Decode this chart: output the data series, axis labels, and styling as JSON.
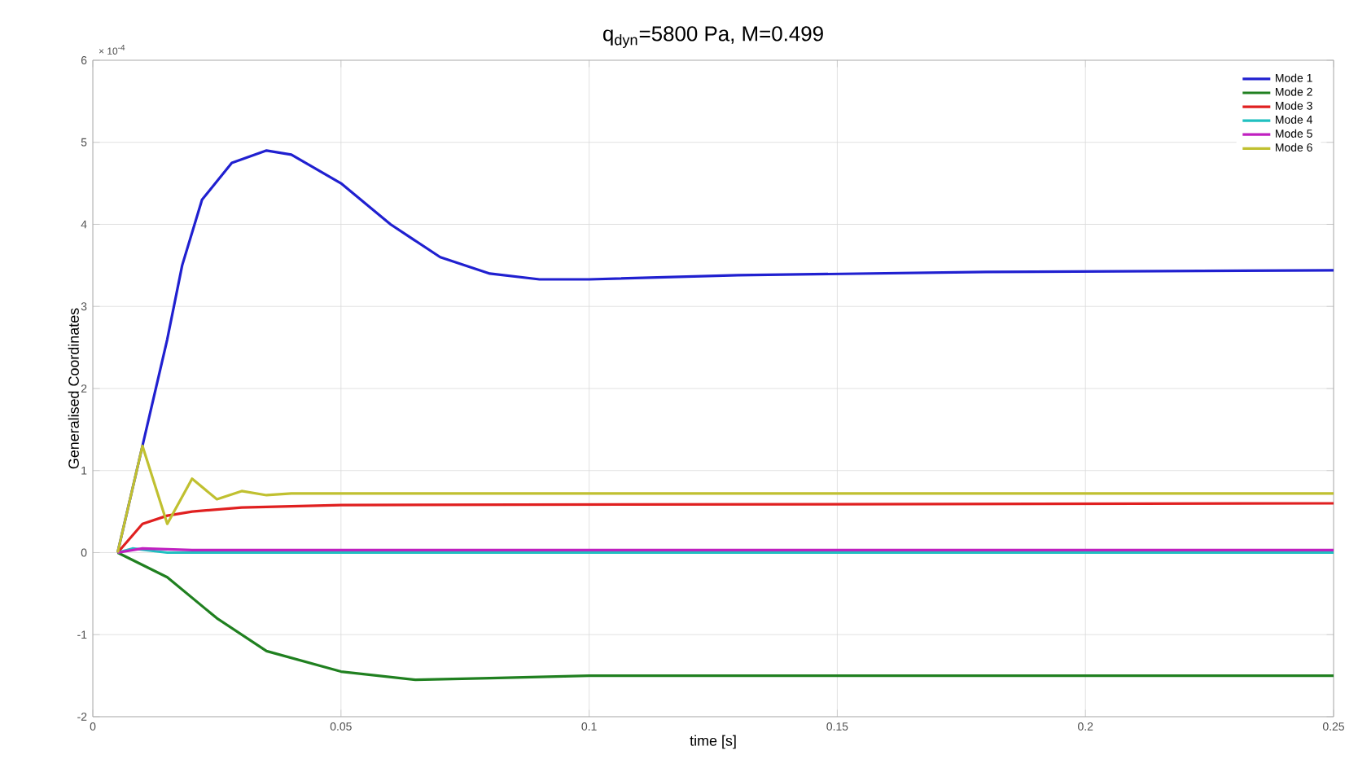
{
  "chart_data": {
    "type": "line",
    "title": "q$_{dyn}$=5800 Pa, M=0.499",
    "xlabel": "time [s]",
    "ylabel": "Generalised Coordinates",
    "annotations": [
      "× 10$^{-4}$"
    ],
    "xlim": [
      0,
      0.25
    ],
    "ylim": [
      -2,
      6
    ],
    "xticks": [
      0,
      0.05,
      0.1,
      0.15,
      0.2,
      0.25
    ],
    "yticks": [
      -2,
      -1,
      0,
      1,
      2,
      3,
      4,
      5,
      6
    ],
    "grid": true,
    "legend": "top right",
    "marker": "none",
    "line_style": "solid",
    "series": [
      {
        "name": "Mode 1",
        "color": "#2020d0",
        "x": [
          0.005,
          0.01,
          0.015,
          0.018,
          0.022,
          0.028,
          0.035,
          0.04,
          0.05,
          0.06,
          0.07,
          0.08,
          0.09,
          0.1,
          0.13,
          0.18,
          0.25
        ],
        "values": [
          0,
          1.3,
          2.6,
          3.5,
          4.3,
          4.75,
          4.9,
          4.85,
          4.5,
          4.0,
          3.6,
          3.4,
          3.33,
          3.33,
          3.38,
          3.42,
          3.44
        ]
      },
      {
        "name": "Mode 2",
        "color": "#208020",
        "x": [
          0.005,
          0.015,
          0.025,
          0.035,
          0.05,
          0.065,
          0.08,
          0.1,
          0.25
        ],
        "values": [
          0,
          -0.3,
          -0.8,
          -1.2,
          -1.45,
          -1.55,
          -1.53,
          -1.5,
          -1.5
        ]
      },
      {
        "name": "Mode 3",
        "color": "#e02020",
        "x": [
          0.005,
          0.01,
          0.015,
          0.02,
          0.03,
          0.05,
          0.25
        ],
        "values": [
          0,
          0.35,
          0.45,
          0.5,
          0.55,
          0.58,
          0.6
        ]
      },
      {
        "name": "Mode 4",
        "color": "#20c0c0",
        "x": [
          0.005,
          0.008,
          0.015,
          0.25
        ],
        "values": [
          0,
          0.05,
          0,
          0
        ]
      },
      {
        "name": "Mode 5",
        "color": "#c020c0",
        "x": [
          0.005,
          0.01,
          0.02,
          0.25
        ],
        "values": [
          0,
          0.05,
          0.03,
          0.03
        ]
      },
      {
        "name": "Mode 6",
        "color": "#c0c030",
        "x": [
          0.005,
          0.01,
          0.015,
          0.02,
          0.025,
          0.03,
          0.035,
          0.04,
          0.25
        ],
        "values": [
          0,
          1.3,
          0.35,
          0.9,
          0.65,
          0.75,
          0.7,
          0.72,
          0.72
        ]
      }
    ]
  }
}
